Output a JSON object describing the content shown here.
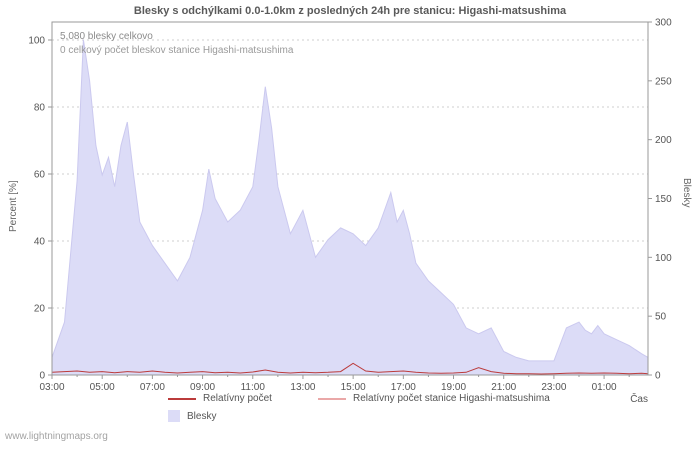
{
  "title": "Blesky s odchýlkami 0.0-1.0km z posledných 24h pre stanicu: Higashi-matsushima",
  "annotations": {
    "total": "5,080 blesky celkovo",
    "station_total": "0 celkový počet bleskov stanice Higashi-matsushima"
  },
  "watermark": "www.lightningmaps.org",
  "axes": {
    "left_label": "Percent  [%]",
    "right_label": "Blesky",
    "x_label": "Čas"
  },
  "legend": [
    {
      "label": "Relatívny počet",
      "type": "line",
      "color": "#bb3b3b"
    },
    {
      "label": "Relatívny počet stanice Higashi-matsushima",
      "type": "line",
      "color": "#eaa8a8"
    },
    {
      "label": "Blesky",
      "type": "area",
      "color": "#dcdcf7"
    }
  ],
  "colors": {
    "grid": "#cfcfcf",
    "frame": "#999999",
    "area_fill": "#dcdcf7",
    "area_edge": "#cbc9ef",
    "red_line": "#bb3b3b",
    "pink_line": "#eaa8a8"
  },
  "chart_data": {
    "type": "area",
    "title": "Blesky s odchýlkami 0.0-1.0km z posledných 24h pre stanicu: Higashi-matsushima",
    "x_domain": [
      3,
      26.75
    ],
    "left_ylim": [
      0,
      100
    ],
    "right_ylim": [
      0,
      300
    ],
    "left_ticks": [
      0,
      20,
      40,
      60,
      80,
      100
    ],
    "right_ticks": [
      0,
      50,
      100,
      150,
      200,
      250,
      300
    ],
    "x_ticks": [
      {
        "t": 3,
        "label": "03:00"
      },
      {
        "t": 5,
        "label": "05:00"
      },
      {
        "t": 7,
        "label": "07:00"
      },
      {
        "t": 9,
        "label": "09:00"
      },
      {
        "t": 11,
        "label": "11:00"
      },
      {
        "t": 13,
        "label": "13:00"
      },
      {
        "t": 15,
        "label": "15:00"
      },
      {
        "t": 17,
        "label": "17:00"
      },
      {
        "t": 19,
        "label": "19:00"
      },
      {
        "t": 21,
        "label": "21:00"
      },
      {
        "t": 23,
        "label": "23:00"
      },
      {
        "t": 25,
        "label": "01:00"
      }
    ],
    "series": [
      {
        "name": "Blesky",
        "type": "area",
        "axis": "right",
        "color": "#dcdcf7",
        "edge": "#cbc9ef",
        "x": [
          3,
          3.5,
          4,
          4.25,
          4.5,
          4.75,
          5,
          5.25,
          5.5,
          5.75,
          6,
          6.25,
          6.5,
          7,
          7.5,
          8,
          8.5,
          9,
          9.25,
          9.5,
          10,
          10.5,
          11,
          11.25,
          11.5,
          11.75,
          12,
          12.5,
          13,
          13.25,
          13.5,
          14,
          14.5,
          15,
          15.5,
          16,
          16.5,
          16.75,
          17,
          17.25,
          17.5,
          18,
          18.5,
          19,
          19.5,
          20,
          20.5,
          21,
          21.5,
          22,
          22.5,
          23,
          23.5,
          24,
          24.25,
          24.5,
          24.75,
          25,
          25.5,
          26,
          26.5,
          26.75
        ],
        "values": [
          15,
          45,
          165,
          285,
          250,
          195,
          170,
          185,
          160,
          195,
          215,
          170,
          130,
          110,
          95,
          80,
          100,
          140,
          175,
          150,
          130,
          140,
          160,
          200,
          245,
          210,
          160,
          120,
          140,
          120,
          100,
          115,
          125,
          120,
          110,
          125,
          155,
          130,
          140,
          120,
          95,
          80,
          70,
          60,
          40,
          35,
          40,
          20,
          15,
          12,
          12,
          12,
          40,
          45,
          38,
          35,
          42,
          35,
          30,
          25,
          18,
          15
        ]
      },
      {
        "name": "Relatívny počet",
        "type": "line",
        "axis": "left",
        "color": "#bb3b3b",
        "x": [
          3,
          3.5,
          4,
          4.5,
          5,
          5.5,
          6,
          6.5,
          7,
          7.5,
          8,
          8.5,
          9,
          9.5,
          10,
          10.5,
          11,
          11.5,
          12,
          12.5,
          13,
          13.5,
          14,
          14.5,
          15,
          15.5,
          16,
          16.5,
          17,
          17.5,
          18,
          18.5,
          19,
          19.5,
          20,
          20.5,
          21,
          21.5,
          22,
          22.5,
          23,
          23.5,
          24,
          24.5,
          25,
          25.5,
          26,
          26.5,
          26.75
        ],
        "values": [
          0.8,
          1.0,
          1.2,
          0.8,
          1.0,
          0.7,
          1.0,
          0.8,
          1.2,
          0.8,
          0.6,
          0.8,
          1.0,
          0.7,
          0.8,
          0.6,
          0.9,
          1.5,
          0.8,
          0.6,
          0.8,
          0.7,
          0.8,
          1.0,
          3.5,
          1.2,
          0.8,
          1.0,
          1.2,
          0.8,
          0.6,
          0.5,
          0.6,
          0.8,
          2.2,
          1.0,
          0.5,
          0.4,
          0.4,
          0.3,
          0.4,
          0.5,
          0.6,
          0.5,
          0.6,
          0.5,
          0.4,
          0.5,
          0.4
        ]
      },
      {
        "name": "Relatívny počet stanice Higashi-matsushima",
        "type": "line",
        "axis": "left",
        "color": "#eaa8a8",
        "x": [
          3,
          26.75
        ],
        "values": [
          0,
          0
        ]
      }
    ]
  }
}
